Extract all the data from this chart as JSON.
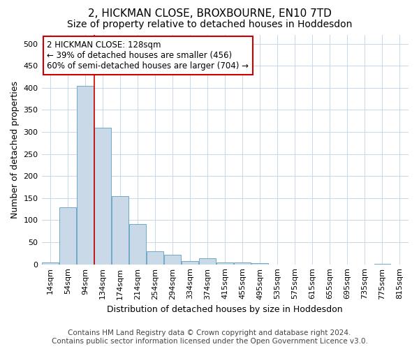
{
  "title": "2, HICKMAN CLOSE, BROXBOURNE, EN10 7TD",
  "subtitle": "Size of property relative to detached houses in Hoddesdon",
  "xlabel": "Distribution of detached houses by size in Hoddesdon",
  "ylabel": "Number of detached properties",
  "categories": [
    "14sqm",
    "54sqm",
    "94sqm",
    "134sqm",
    "174sqm",
    "214sqm",
    "254sqm",
    "294sqm",
    "334sqm",
    "374sqm",
    "415sqm",
    "455sqm",
    "495sqm",
    "535sqm",
    "575sqm",
    "615sqm",
    "655sqm",
    "695sqm",
    "735sqm",
    "775sqm",
    "815sqm"
  ],
  "values": [
    5,
    130,
    405,
    310,
    155,
    92,
    30,
    22,
    7,
    14,
    4,
    4,
    2,
    0,
    0,
    0,
    0,
    0,
    0,
    1,
    0
  ],
  "bar_color": "#c9d9e8",
  "bar_edge_color": "#6fa8c8",
  "vline_x": 2.5,
  "vline_color": "#cc0000",
  "annotation_line1": "2 HICKMAN CLOSE: 128sqm",
  "annotation_line2": "← 39% of detached houses are smaller (456)",
  "annotation_line3": "60% of semi-detached houses are larger (704) →",
  "annotation_box_color": "#cc0000",
  "ylim": [
    0,
    520
  ],
  "yticks": [
    0,
    50,
    100,
    150,
    200,
    250,
    300,
    350,
    400,
    450,
    500
  ],
  "footer_line1": "Contains HM Land Registry data © Crown copyright and database right 2024.",
  "footer_line2": "Contains public sector information licensed under the Open Government Licence v3.0.",
  "background_color": "#ffffff",
  "grid_color": "#c8d8e8",
  "title_fontsize": 11,
  "subtitle_fontsize": 10,
  "xlabel_fontsize": 9,
  "ylabel_fontsize": 9,
  "tick_fontsize": 8,
  "annotation_fontsize": 8.5,
  "footer_fontsize": 7.5
}
